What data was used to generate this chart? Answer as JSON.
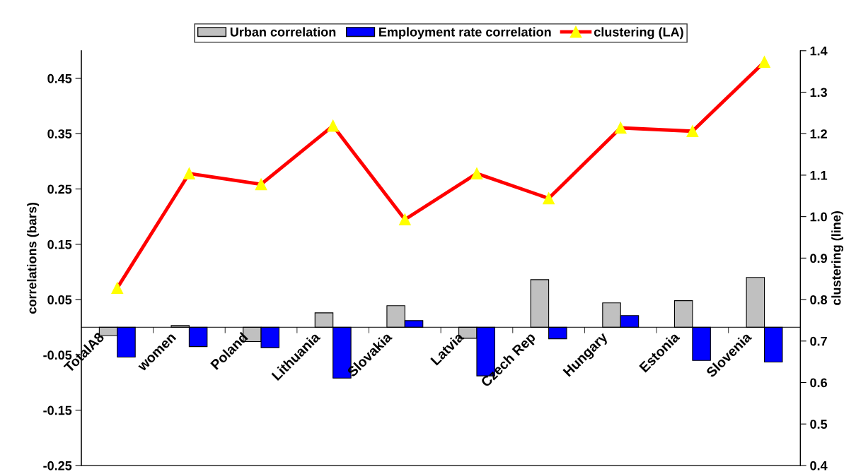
{
  "chart_data": {
    "type": "bar",
    "categories": [
      "TotalA8",
      "women",
      "Poland",
      "Lithuania",
      "Slovakia",
      "Latvia",
      "Czech Rep",
      "Hungary",
      "Estonia",
      "Slovenia"
    ],
    "series": [
      {
        "name": "Urban correlation",
        "color": "#c0c0c0",
        "values": [
          -0.015,
          0.003,
          -0.026,
          0.026,
          0.039,
          -0.02,
          0.086,
          0.044,
          0.048,
          0.09
        ]
      },
      {
        "name": "Employment rate correlation",
        "color": "#0000ff",
        "values": [
          -0.054,
          -0.035,
          -0.037,
          -0.092,
          0.012,
          -0.088,
          -0.021,
          0.021,
          -0.06,
          -0.063
        ]
      },
      {
        "name": "clustering (LA)",
        "type": "line",
        "axis": "y2",
        "color": "#ff0000",
        "marker": "triangle",
        "values": [
          0.828,
          1.104,
          1.078,
          1.219,
          0.993,
          1.104,
          1.044,
          1.214,
          1.206,
          1.373
        ]
      }
    ],
    "ylabel": "correlations (bars)",
    "y2label": "clustering (line)",
    "ylim": [
      -0.25,
      0.5
    ],
    "yticks": [
      -0.25,
      -0.15,
      -0.05,
      0.05,
      0.15,
      0.25,
      0.35,
      0.45
    ],
    "y2lim": [
      0.4,
      1.4
    ],
    "y2ticks": [
      {
        "value": 0.4,
        "label": "0.4"
      },
      {
        "value": 0.5,
        "label": "0.5"
      },
      {
        "value": 0.6,
        "label": "0.6"
      },
      {
        "value": 0.7,
        "label": "0.7"
      },
      {
        "value": 0.8,
        "label": "0.8"
      },
      {
        "value": 0.9,
        "label": "0.9"
      },
      {
        "value": 1.0,
        "label": "1.0"
      },
      {
        "value": 1.1,
        "label": "1.1"
      },
      {
        "value": 1.2,
        "label": "1.2"
      },
      {
        "value": 1.3,
        "label": "1.3"
      },
      {
        "value": 1.4,
        "label": "1.4"
      }
    ],
    "grid": false,
    "legend": "top"
  }
}
